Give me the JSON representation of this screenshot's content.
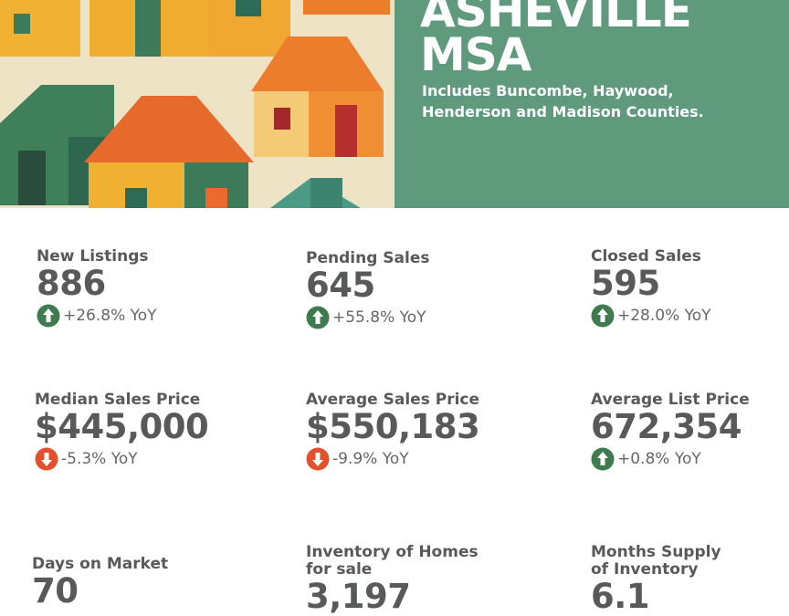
{
  "header": {
    "title_lines": [
      "ASHEVILLE",
      "MSA"
    ],
    "subtitle_lines": [
      "Includes Buncombe, Haywood,",
      "Henderson and Madison Counties."
    ]
  },
  "stats": [
    {
      "label": [
        "New Listings"
      ],
      "value": "886",
      "change": "+26.8% YoY",
      "trend": "up"
    },
    {
      "label": [
        "Pending Sales"
      ],
      "value": "645",
      "change": "+55.8% YoY",
      "trend": "up"
    },
    {
      "label": [
        "Closed Sales"
      ],
      "value": "595",
      "change": "+28.0% YoY",
      "trend": "up"
    },
    {
      "label": [
        "Median Sales Price"
      ],
      "value": "$445,000",
      "change": "-5.3% YoY",
      "trend": "down"
    },
    {
      "label": [
        "Average Sales Price"
      ],
      "value": "$550,183",
      "change": "-9.9% YoY",
      "trend": "down"
    },
    {
      "label": [
        "Average List Price"
      ],
      "value": "672,354",
      "change": "+0.8% YoY",
      "trend": "up"
    },
    {
      "label": [
        "Days on Market"
      ],
      "value": "70"
    },
    {
      "label": [
        "Inventory of Homes",
        "for sale"
      ],
      "value": "3,197"
    },
    {
      "label": [
        "Months Supply",
        "of Inventory"
      ],
      "value": "6.1"
    }
  ]
}
